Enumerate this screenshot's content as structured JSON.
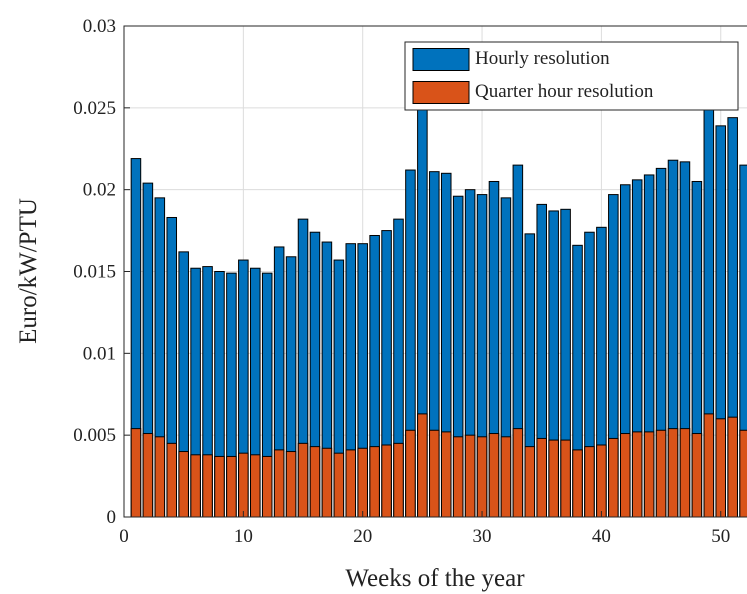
{
  "chart_data": {
    "type": "bar",
    "mode": "overlay",
    "xlabel": "Weeks of the year",
    "ylabel": "Euro/kW/PTU",
    "x": [
      1,
      2,
      3,
      4,
      5,
      6,
      7,
      8,
      9,
      10,
      11,
      12,
      13,
      14,
      15,
      16,
      17,
      18,
      19,
      20,
      21,
      22,
      23,
      24,
      25,
      26,
      27,
      28,
      29,
      30,
      31,
      32,
      33,
      34,
      35,
      36,
      37,
      38,
      39,
      40,
      41,
      42,
      43,
      44,
      45,
      46,
      47,
      48,
      49,
      50,
      51,
      52
    ],
    "series": [
      {
        "name": "Hourly resolution",
        "color": "#0072bd",
        "values": [
          0.0219,
          0.0204,
          0.0195,
          0.0183,
          0.0162,
          0.0152,
          0.0153,
          0.015,
          0.0149,
          0.0157,
          0.0152,
          0.0149,
          0.0165,
          0.0159,
          0.0182,
          0.0174,
          0.0168,
          0.0157,
          0.0167,
          0.0167,
          0.0172,
          0.0175,
          0.0182,
          0.0212,
          0.026,
          0.0211,
          0.021,
          0.0196,
          0.02,
          0.0197,
          0.0205,
          0.0195,
          0.0215,
          0.0173,
          0.0191,
          0.0187,
          0.0188,
          0.0166,
          0.0174,
          0.0177,
          0.0197,
          0.0203,
          0.0206,
          0.0209,
          0.0213,
          0.0218,
          0.0217,
          0.0205,
          0.026,
          0.0239,
          0.0244,
          0.0215
        ]
      },
      {
        "name": "Quarter hour resolution",
        "color": "#d95319",
        "values": [
          0.0054,
          0.0051,
          0.0049,
          0.0045,
          0.004,
          0.0038,
          0.0038,
          0.0037,
          0.0037,
          0.0039,
          0.0038,
          0.0037,
          0.0041,
          0.004,
          0.0045,
          0.0043,
          0.0042,
          0.0039,
          0.0041,
          0.0042,
          0.0043,
          0.0044,
          0.0045,
          0.0053,
          0.0063,
          0.0053,
          0.0052,
          0.0049,
          0.005,
          0.0049,
          0.0051,
          0.0049,
          0.0054,
          0.0043,
          0.0048,
          0.0047,
          0.0047,
          0.0041,
          0.0043,
          0.0044,
          0.0048,
          0.0051,
          0.0052,
          0.0052,
          0.0053,
          0.0054,
          0.0054,
          0.0051,
          0.0063,
          0.006,
          0.0061,
          0.0053
        ]
      }
    ],
    "xlim": [
      0,
      52.2
    ],
    "xticks": [
      0,
      10,
      20,
      30,
      40,
      50
    ],
    "ylim": [
      0,
      0.03
    ],
    "yticks": [
      0,
      0.005,
      0.01,
      0.015,
      0.02,
      0.025,
      0.03
    ],
    "grid": true,
    "legend": "top-right"
  }
}
